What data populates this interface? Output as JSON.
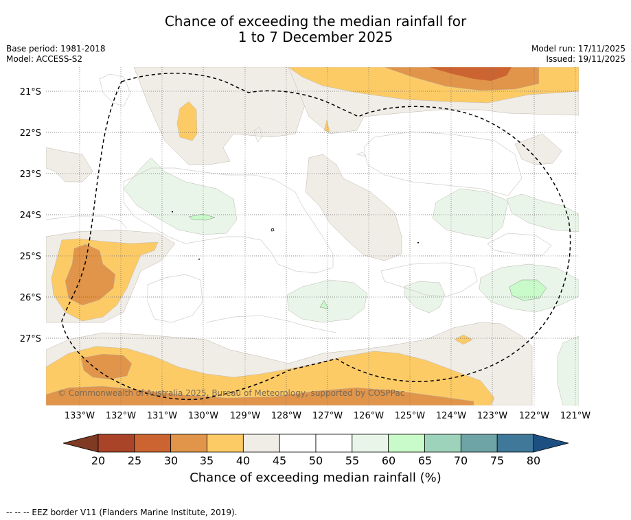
{
  "title": {
    "line1": "Chance of exceeding the median rainfall for",
    "line2": "1 to 7 December 2025"
  },
  "meta": {
    "base_period": "Base period: 1981-2018",
    "model": "Model: ACCESS-S2",
    "model_run": "Model run: 17/11/2025",
    "issued": "Issued: 19/11/2025"
  },
  "map": {
    "lat_labels": [
      "21°S",
      "22°S",
      "23°S",
      "24°S",
      "25°S",
      "26°S",
      "27°S"
    ],
    "lon_labels": [
      "133°W",
      "132°W",
      "131°W",
      "130°W",
      "129°W",
      "128°W",
      "127°W",
      "126°W",
      "125°W",
      "124°W",
      "123°W",
      "122°W",
      "121°W"
    ],
    "copyright": "© Commonwealth of Australia 2025, Bureau of Meteorology, supported by COSPPac"
  },
  "colorbar": {
    "ticks": [
      "20",
      "25",
      "30",
      "35",
      "40",
      "45",
      "50",
      "55",
      "60",
      "65",
      "70",
      "75",
      "80"
    ],
    "colors": [
      "#a94428",
      "#cc6432",
      "#e0954a",
      "#fdcb66",
      "#f0ece6",
      "#ffffff",
      "#ffffff",
      "#e9f5e9",
      "#c9fac9",
      "#9dd3bb",
      "#6fa4a6",
      "#3f7898"
    ],
    "under_color": "#7f3a23",
    "over_color": "#1d4f82",
    "label": "Chance of exceeding median rainfall (%)"
  },
  "footer": "--  --  -- EEZ border V11 (Flanders Marine Institute, 2019)."
}
